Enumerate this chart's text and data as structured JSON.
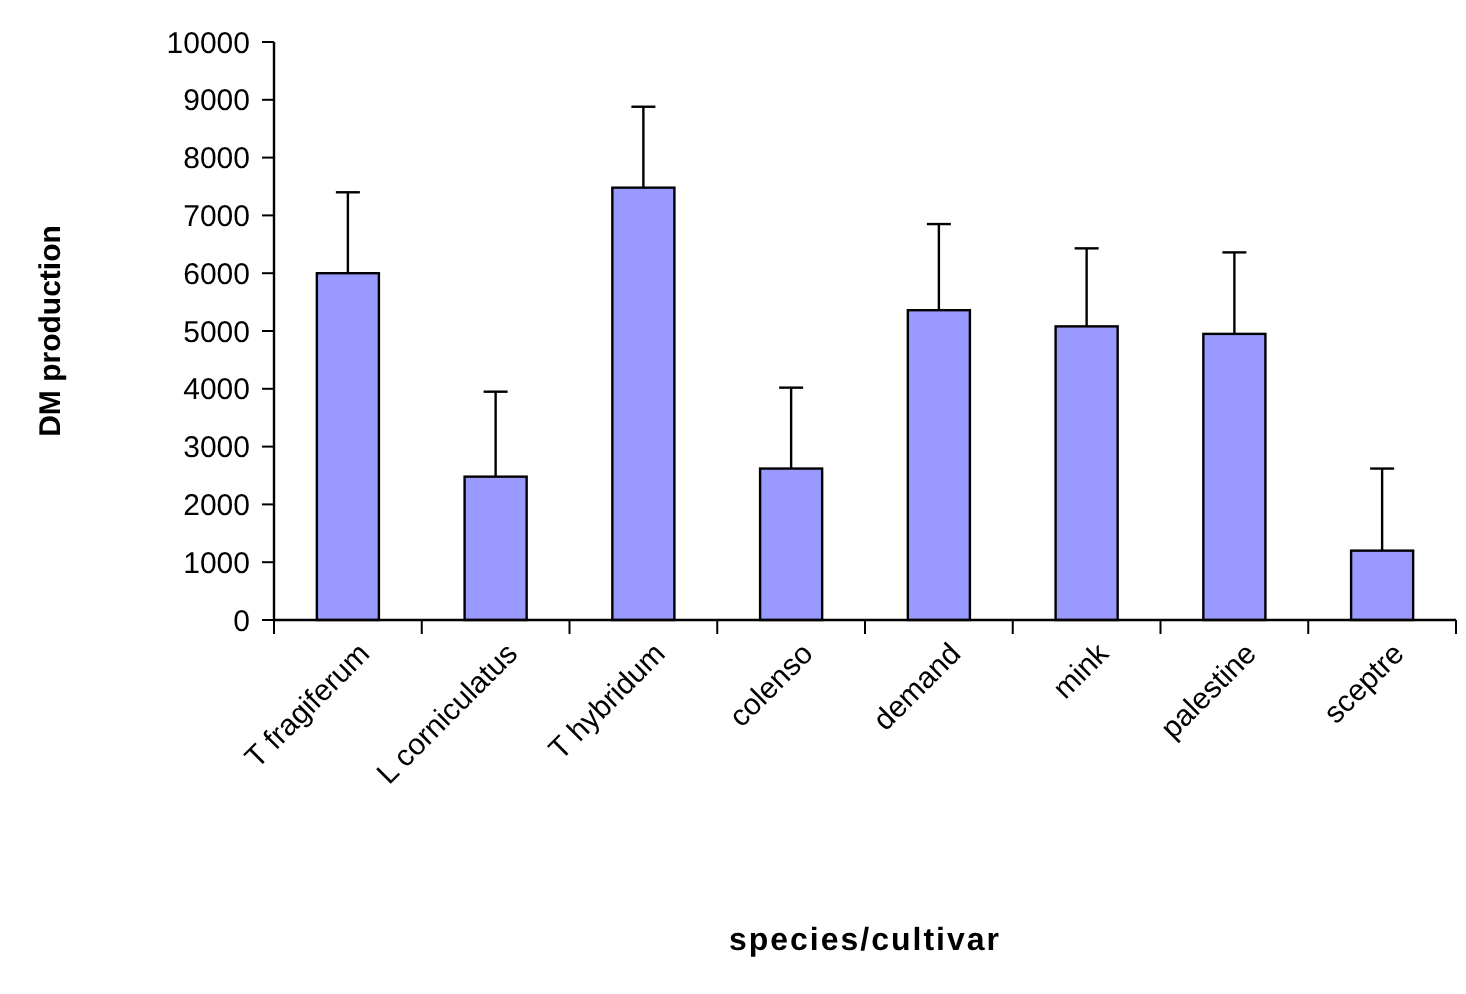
{
  "chart_data": {
    "type": "bar",
    "xlabel": "species/cultivar",
    "ylabel": "DM production",
    "categories": [
      "T fragiferum",
      "L corniculatus",
      "T hybridum",
      "colenso",
      "demand",
      "mink",
      "palestine",
      "sceptre"
    ],
    "values": [
      6000,
      2480,
      7480,
      2620,
      5360,
      5080,
      4950,
      1200
    ],
    "errors": [
      [
        6000,
        7400
      ],
      [
        2480,
        3950
      ],
      [
        7480,
        8880
      ],
      [
        2620,
        4020
      ],
      [
        5360,
        6850
      ],
      [
        5080,
        6430
      ],
      [
        4950,
        6360
      ],
      [
        1200,
        2620
      ]
    ],
    "color": "#9999ff",
    "ylim": [
      0,
      10000
    ],
    "yticks": [
      0,
      1000,
      2000,
      3000,
      4000,
      5000,
      6000,
      7000,
      8000,
      9000,
      10000
    ],
    "grid": false
  }
}
